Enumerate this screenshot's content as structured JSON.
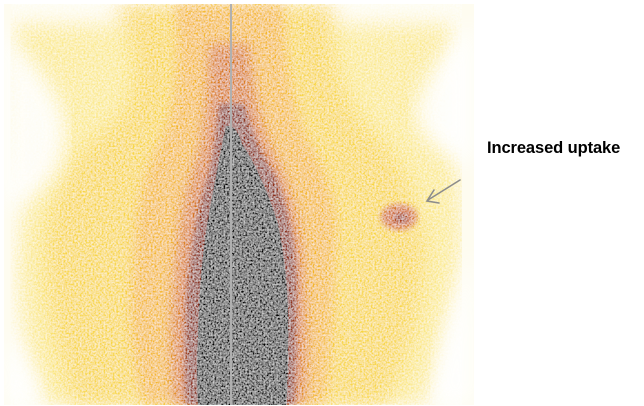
{
  "annotation": {
    "label": "Increased uptake"
  },
  "image": {
    "subject": "scintigraphy-scan",
    "colormap": [
      "#000000",
      "#3a0600",
      "#8c2808",
      "#c8600c",
      "#ec9a14",
      "#f6c022",
      "#fadf60",
      "#fdf2b4",
      "#ffffff"
    ],
    "marker_color": "#a8a8a8"
  }
}
